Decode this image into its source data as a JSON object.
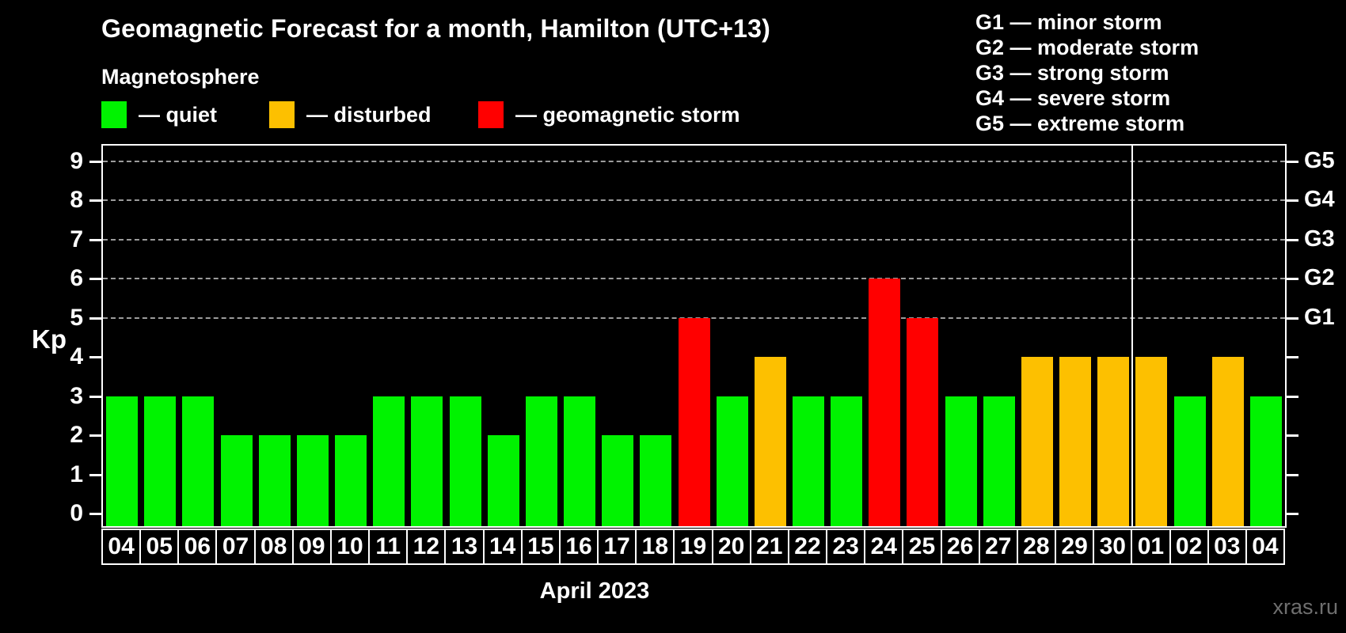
{
  "title": "Geomagnetic Forecast for a month, Hamilton (UTC+13)",
  "subtitle": "Magnetosphere",
  "legend": {
    "quiet_label": "— quiet",
    "disturbed_label": "— disturbed",
    "storm_label": "— geomagnetic storm"
  },
  "g_legend": [
    "G1 — minor storm",
    "G2 — moderate storm",
    "G3 — strong storm",
    "G4 — severe storm",
    "G5 — extreme storm"
  ],
  "watermark": "xras.ru",
  "chart_data": {
    "type": "bar",
    "title": "Geomagnetic Forecast for a month, Hamilton (UTC+13)",
    "xlabel": "April 2023",
    "ylabel": "Kp",
    "ylim": [
      0,
      9.5
    ],
    "y_ticks": [
      0,
      1,
      2,
      3,
      4,
      5,
      6,
      7,
      8,
      9
    ],
    "gridlines_at_kp": [
      5,
      6,
      7,
      8,
      9
    ],
    "right_axis_labels": [
      {
        "kp": 5,
        "label": "G1"
      },
      {
        "kp": 6,
        "label": "G2"
      },
      {
        "kp": 7,
        "label": "G3"
      },
      {
        "kp": 8,
        "label": "G4"
      },
      {
        "kp": 9,
        "label": "G5"
      }
    ],
    "categories": [
      "04",
      "05",
      "06",
      "07",
      "08",
      "09",
      "10",
      "11",
      "12",
      "13",
      "14",
      "15",
      "16",
      "17",
      "18",
      "19",
      "20",
      "21",
      "22",
      "23",
      "24",
      "25",
      "26",
      "27",
      "28",
      "29",
      "30",
      "01",
      "02",
      "03",
      "04"
    ],
    "values": [
      3,
      3,
      3,
      2,
      2,
      2,
      2,
      3,
      3,
      3,
      2,
      3,
      3,
      2,
      2,
      5,
      3,
      4,
      3,
      3,
      6,
      5,
      3,
      3,
      4,
      4,
      4,
      4,
      3,
      4,
      3
    ],
    "states": [
      "quiet",
      "quiet",
      "quiet",
      "quiet",
      "quiet",
      "quiet",
      "quiet",
      "quiet",
      "quiet",
      "quiet",
      "quiet",
      "quiet",
      "quiet",
      "quiet",
      "quiet",
      "storm",
      "quiet",
      "disturbed",
      "quiet",
      "quiet",
      "storm",
      "storm",
      "quiet",
      "quiet",
      "disturbed",
      "disturbed",
      "disturbed",
      "disturbed",
      "quiet",
      "disturbed",
      "quiet"
    ],
    "colors": {
      "quiet": "#00f300",
      "disturbed": "#fdc000",
      "storm": "#ff0000"
    },
    "separator_after_index": 26,
    "legend_position": "top",
    "grid": "dashed, Kp 5-9 only"
  }
}
